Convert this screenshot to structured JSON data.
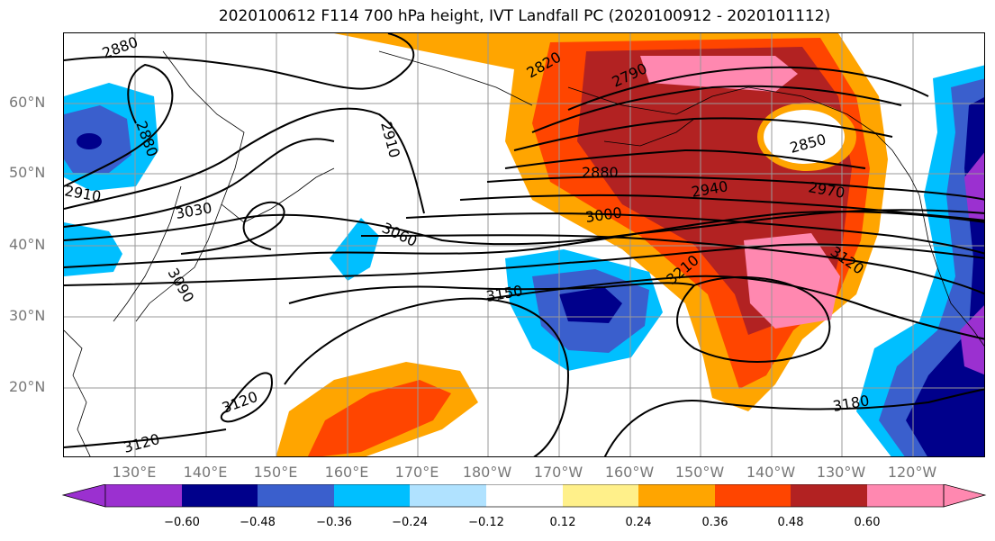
{
  "title": "2020100612 F114 700 hPa height, IVT Landfall PC (2020100912 - 2020101112)",
  "lat_labels": [
    "60°N",
    "50°N",
    "40°N",
    "30°N",
    "20°N"
  ],
  "lon_labels": [
    "130°E",
    "140°E",
    "150°E",
    "160°E",
    "170°E",
    "180°W",
    "170°W",
    "160°W",
    "150°W",
    "140°W",
    "130°W",
    "120°W"
  ],
  "contour_labels": [
    "2880",
    "2820",
    "2790",
    "2910",
    "2880",
    "2850",
    "2880",
    "2940",
    "2970",
    "3030",
    "3060",
    "3000",
    "3120",
    "2910",
    "3090",
    "3150",
    "3210",
    "3120",
    "3120",
    "3180"
  ],
  "colorbar": {
    "ticks": [
      "−0.60",
      "−0.48",
      "−0.36",
      "−0.24",
      "−0.12",
      "0.12",
      "0.24",
      "0.36",
      "0.48",
      "0.60"
    ],
    "colors": [
      "#9b30d0",
      "#00008b",
      "#3a5fcd",
      "#00bfff",
      "#b0e2ff",
      "#ffffff",
      "#fff08a",
      "#ffa500",
      "#ff4500",
      "#b22222",
      "#ff88b0"
    ]
  },
  "colors": {
    "neg_strong": "#00008b",
    "neg_mid": "#3a5fcd",
    "neg_light": "#00bfff",
    "neg_faint": "#b0e2ff",
    "purple": "#9b30d0",
    "pos_faint": "#fff08a",
    "pos_light": "#ffa500",
    "pos_mid": "#ff4500",
    "pos_strong": "#b22222",
    "pos_max": "#ff88b0"
  }
}
